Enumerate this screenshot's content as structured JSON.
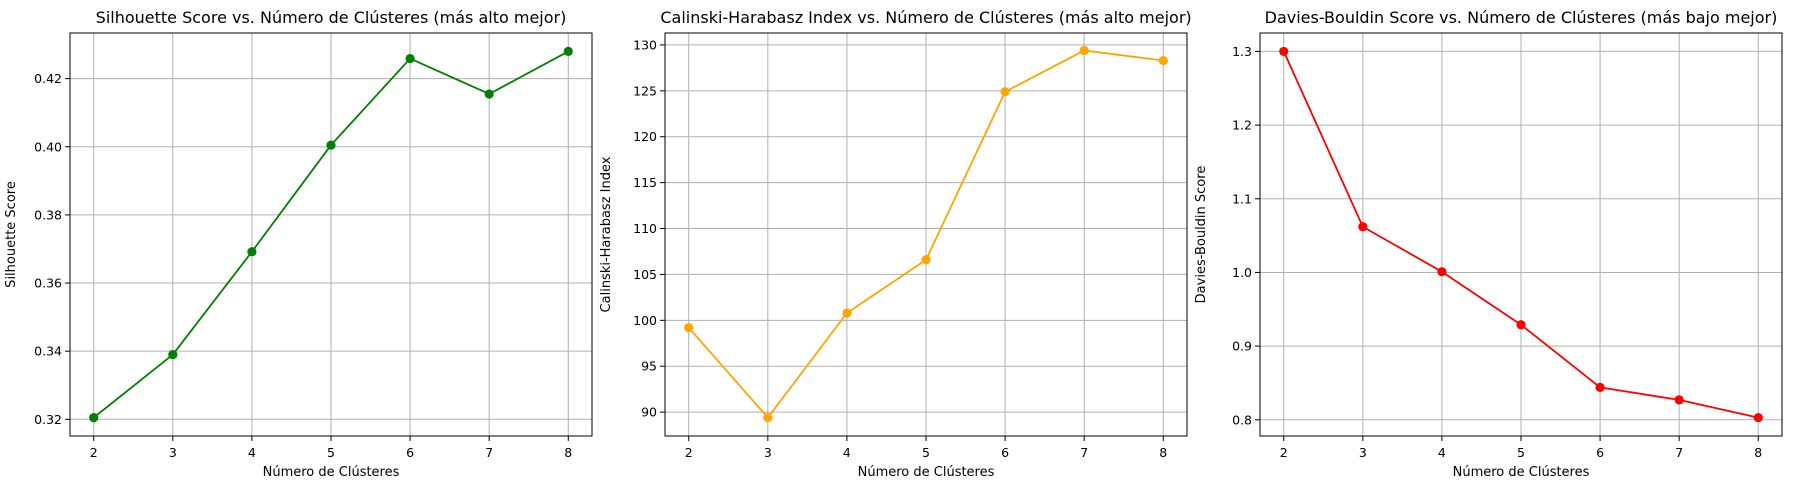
{
  "chart_data": [
    {
      "type": "line",
      "title": "Silhouette Score vs. Número de Clústeres (más alto mejor)",
      "xlabel": "Número de Clústeres",
      "ylabel": "Silhouette Score",
      "x": [
        2,
        3,
        4,
        5,
        6,
        7,
        8
      ],
      "values": [
        0.3205,
        0.339,
        0.3692,
        0.4005,
        0.4259,
        0.4155,
        0.428
      ],
      "color": "#008000",
      "marker": "circle",
      "xlim": [
        1.7,
        8.3
      ],
      "ylim": [
        0.3151,
        0.4334
      ],
      "xticks": [
        2,
        3,
        4,
        5,
        6,
        7,
        8
      ],
      "yticks": [
        0.32,
        0.34,
        0.36,
        0.38,
        0.4,
        0.42
      ],
      "yticklabels": [
        "0.32",
        "0.34",
        "0.36",
        "0.38",
        "0.40",
        "0.42"
      ],
      "grid": true
    },
    {
      "type": "line",
      "title": "Calinski-Harabasz Index vs. Número de Clústeres (más alto mejor)",
      "xlabel": "Número de Clústeres",
      "ylabel": "Calinski-Harabasz Index",
      "x": [
        2,
        3,
        4,
        5,
        6,
        7,
        8
      ],
      "values": [
        99.2,
        89.4,
        100.8,
        106.6,
        124.9,
        129.4,
        128.3
      ],
      "color": "#ffa500",
      "marker": "circle",
      "xlim": [
        1.7,
        8.3
      ],
      "ylim": [
        87.4,
        131.3
      ],
      "xticks": [
        2,
        3,
        4,
        5,
        6,
        7,
        8
      ],
      "yticks": [
        90,
        95,
        100,
        105,
        110,
        115,
        120,
        125,
        130
      ],
      "yticklabels": [
        "90",
        "95",
        "100",
        "105",
        "110",
        "115",
        "120",
        "125",
        "130"
      ],
      "grid": true
    },
    {
      "type": "line",
      "title": "Davies-Bouldin Score vs. Número de Clústeres (más bajo mejor)",
      "xlabel": "Número de Clústeres",
      "ylabel": "Davies-Bouldin Score",
      "x": [
        2,
        3,
        4,
        5,
        6,
        7,
        8
      ],
      "values": [
        1.3,
        1.062,
        1.001,
        0.929,
        0.844,
        0.827,
        0.803
      ],
      "color": "#ff0000",
      "marker": "circle",
      "xlim": [
        1.7,
        8.3
      ],
      "ylim": [
        0.778,
        1.325
      ],
      "xticks": [
        2,
        3,
        4,
        5,
        6,
        7,
        8
      ],
      "yticks": [
        0.8,
        0.9,
        1.0,
        1.1,
        1.2,
        1.3
      ],
      "yticklabels": [
        "0.8",
        "0.9",
        "1.0",
        "1.1",
        "1.2",
        "1.3"
      ],
      "grid": true
    }
  ]
}
